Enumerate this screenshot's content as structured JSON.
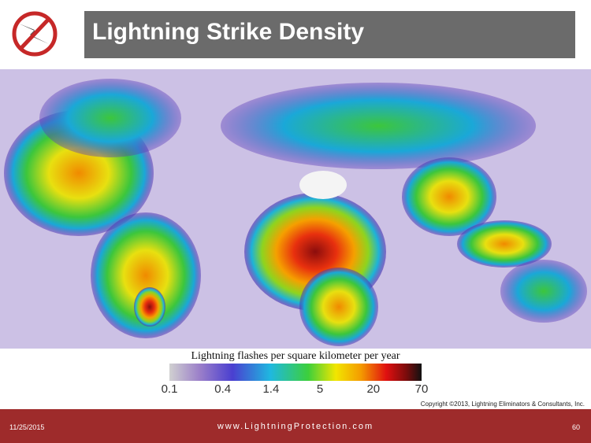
{
  "header": {
    "title": "Lightning Strike Density"
  },
  "legend": {
    "label": "Lightning flashes per square kilometer per year",
    "ticks": [
      0.1,
      0.4,
      1.4,
      5,
      20,
      70
    ]
  },
  "copyright": "Copyright ©2013, Lightning Eliminators & Consultants, Inc.",
  "footer": {
    "date": "11/25/2015",
    "website": "www.LightningProtection.com",
    "page": "60"
  }
}
